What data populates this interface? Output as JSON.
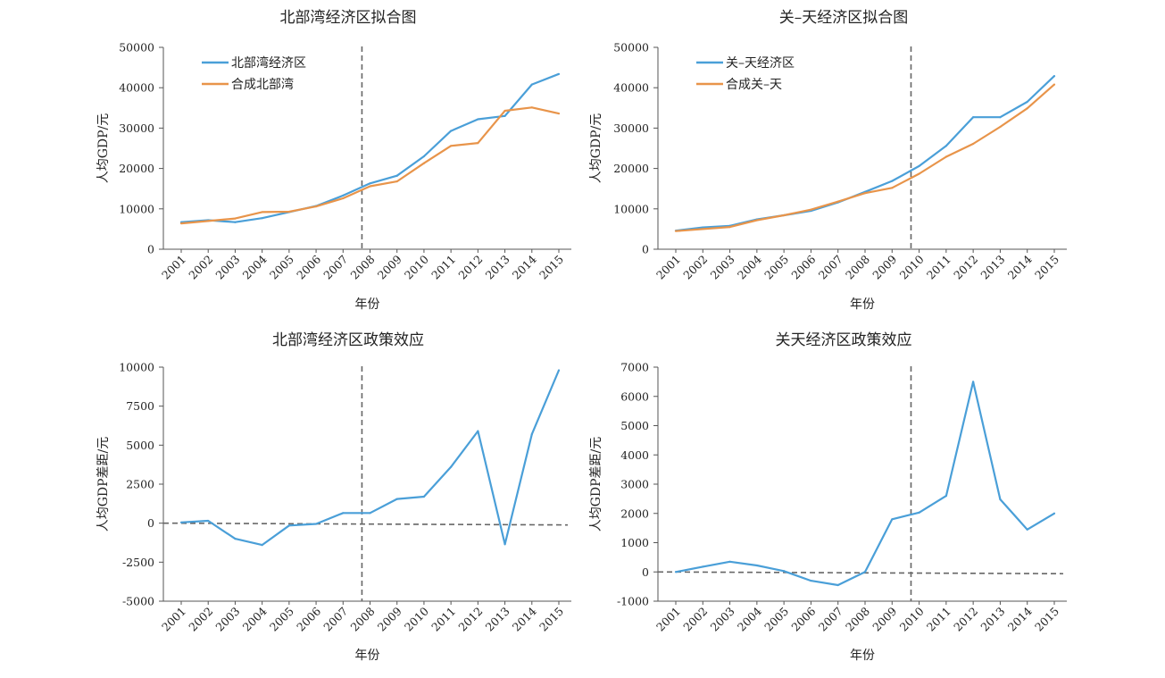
{
  "chart_data": [
    {
      "type": "line",
      "title": "北部湾经济区拟合图",
      "xlabel": "年份",
      "ylabel": "人均GDP/元",
      "categories": [
        "2001",
        "2002",
        "2003",
        "2004",
        "2005",
        "2006",
        "2007",
        "2008",
        "2009",
        "2010",
        "2011",
        "2012",
        "2013",
        "2014",
        "2015"
      ],
      "ylim": [
        0,
        50000
      ],
      "yticks": [
        0,
        10000,
        20000,
        30000,
        40000,
        50000
      ],
      "policy_line": 2007.7,
      "zero_line": false,
      "legend_position": "top-left",
      "series": [
        {
          "name": "北部湾经济区",
          "color": "#4a9fd8",
          "values": [
            6700,
            7200,
            6700,
            7700,
            9200,
            10700,
            13300,
            16300,
            18200,
            23000,
            29300,
            32200,
            33000,
            40800,
            43400
          ]
        },
        {
          "name": "合成北部湾",
          "color": "#e8944a",
          "values": [
            6400,
            7000,
            7600,
            9200,
            9300,
            10600,
            12600,
            15600,
            16800,
            21300,
            25600,
            26300,
            34300,
            35100,
            33600
          ]
        }
      ]
    },
    {
      "type": "line",
      "title": "关–天经济区拟合图",
      "xlabel": "年份",
      "ylabel": "人均GDP/元",
      "categories": [
        "2001",
        "2002",
        "2003",
        "2004",
        "2005",
        "2006",
        "2007",
        "2008",
        "2009",
        "2010",
        "2011",
        "2012",
        "2013",
        "2014",
        "2015"
      ],
      "ylim": [
        0,
        50000
      ],
      "yticks": [
        0,
        10000,
        20000,
        30000,
        40000,
        50000
      ],
      "policy_line": 2009.7,
      "zero_line": false,
      "legend_position": "top-left",
      "series": [
        {
          "name": "关–天经济区",
          "color": "#4a9fd8",
          "values": [
            4600,
            5400,
            5800,
            7400,
            8400,
            9500,
            11600,
            14200,
            16900,
            20600,
            25600,
            32700,
            32700,
            36500,
            42900
          ]
        },
        {
          "name": "合成关–天",
          "color": "#e8944a",
          "values": [
            4500,
            5000,
            5500,
            7200,
            8400,
            9800,
            11800,
            13900,
            15200,
            18700,
            22900,
            26100,
            30300,
            34900,
            40800
          ]
        }
      ]
    },
    {
      "type": "line",
      "title": "北部湾经济区政策效应",
      "xlabel": "年份",
      "ylabel": "人均GDP差距/元",
      "categories": [
        "2001",
        "2002",
        "2003",
        "2004",
        "2005",
        "2006",
        "2007",
        "2008",
        "2009",
        "2010",
        "2011",
        "2012",
        "2013",
        "2014",
        "2015"
      ],
      "ylim": [
        -5000,
        10000
      ],
      "yticks": [
        -5000,
        -2500,
        0,
        2500,
        5000,
        7500,
        10000
      ],
      "policy_line": 2007.7,
      "zero_line": true,
      "series": [
        {
          "name": "",
          "color": "#4a9fd8",
          "values": [
            50,
            150,
            -1000,
            -1400,
            -150,
            -50,
            650,
            650,
            1550,
            1700,
            3600,
            5900,
            -1350,
            5700,
            9800
          ]
        }
      ]
    },
    {
      "type": "line",
      "title": "关天经济区政策效应",
      "xlabel": "年份",
      "ylabel": "人均GDP差距/元",
      "categories": [
        "2001",
        "2002",
        "2003",
        "2004",
        "2005",
        "2006",
        "2007",
        "2008",
        "2009",
        "2010",
        "2011",
        "2012",
        "2013",
        "2014",
        "2015"
      ],
      "ylim": [
        -1000,
        7000
      ],
      "yticks": [
        -1000,
        0,
        1000,
        2000,
        3000,
        4000,
        5000,
        6000,
        7000
      ],
      "policy_line": 2009.7,
      "zero_line": true,
      "series": [
        {
          "name": "",
          "color": "#4a9fd8",
          "values": [
            0,
            180,
            350,
            220,
            30,
            -300,
            -450,
            0,
            1800,
            2030,
            2600,
            6500,
            2480,
            1450,
            2000
          ]
        }
      ]
    }
  ]
}
